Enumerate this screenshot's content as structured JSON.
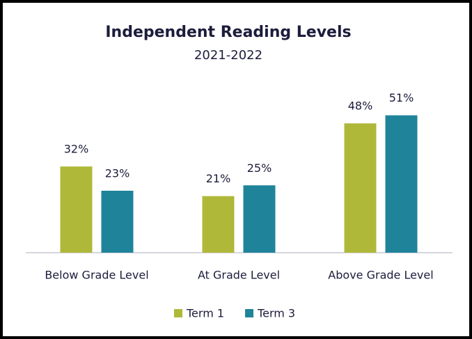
{
  "chart_data": {
    "type": "bar",
    "title": "Independent Reading Levels",
    "subtitle": "2021-2022",
    "categories": [
      "Below Grade Level",
      "At Grade Level",
      "Above Grade Level"
    ],
    "series": [
      {
        "name": "Term 1",
        "color": "#b0b83a",
        "values": [
          32,
          21,
          48
        ],
        "value_labels": [
          "32%",
          "21%",
          "48%"
        ]
      },
      {
        "name": "Term 3",
        "color": "#1f849a",
        "values": [
          23,
          25,
          51
        ],
        "value_labels": [
          "23%",
          "25%",
          "51%"
        ]
      }
    ],
    "legend": "bottom"
  }
}
